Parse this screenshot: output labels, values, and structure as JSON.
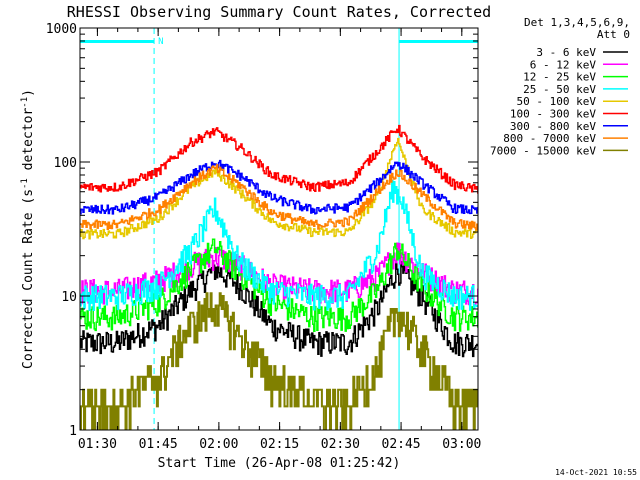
{
  "chart_data": {
    "type": "line",
    "title": "RHESSI Observing Summary Count Rates, Corrected",
    "xlabel": "Start Time (26-Apr-08 01:25:42)",
    "ylabel": "Corrected Count Rate (s",
    "ylabel_sup": "-1",
    "ylabel_tail": " detector",
    "ylabel_end": ")",
    "yscale": "log",
    "ylim": [
      1,
      1000
    ],
    "xlim_minutes": [
      85.7,
      184
    ],
    "x_unit": "minutes after 00:00 UT",
    "x_ticks": [
      {
        "t": 90,
        "label": "01:30"
      },
      {
        "t": 105,
        "label": "01:45"
      },
      {
        "t": 120,
        "label": "02:00"
      },
      {
        "t": 135,
        "label": "02:15"
      },
      {
        "t": 150,
        "label": "02:30"
      },
      {
        "t": 165,
        "label": "02:45"
      },
      {
        "t": 180,
        "label": "03:00"
      }
    ],
    "y_ticks": [
      {
        "v": 1,
        "label": "1"
      },
      {
        "v": 10,
        "label": "10"
      },
      {
        "v": 100,
        "label": "100"
      },
      {
        "v": 1000,
        "label": "1000"
      }
    ],
    "legend": {
      "placement": "right",
      "header": [
        "Det 1,3,4,5,6,9,",
        "Att 0"
      ]
    },
    "series": [
      {
        "name": "3 - 6 keV",
        "color": "#000000",
        "x": [
          85.7,
          95,
          105,
          113,
          119,
          125,
          133,
          143,
          152,
          159,
          164,
          170,
          178,
          184
        ],
        "values": [
          4.5,
          4.5,
          6,
          11,
          16,
          12,
          6,
          4.5,
          4.5,
          8,
          16,
          10,
          4.5,
          4.5
        ]
      },
      {
        "name": "6 - 12 keV",
        "color": "#ff00ff",
        "x": [
          85.7,
          95,
          105,
          113,
          119,
          125,
          133,
          143,
          152,
          159,
          164,
          170,
          178,
          184
        ],
        "values": [
          11,
          11,
          13,
          17,
          20,
          17,
          12,
          11,
          11,
          14,
          22,
          15,
          11,
          11
        ]
      },
      {
        "name": "12 - 25 keV",
        "color": "#00ff00",
        "x": [
          85.7,
          95,
          105,
          113,
          119,
          125,
          133,
          143,
          152,
          159,
          164,
          170,
          178,
          184
        ],
        "values": [
          7,
          7,
          9,
          16,
          23,
          15,
          9,
          7,
          7,
          11,
          23,
          12,
          7,
          7
        ]
      },
      {
        "name": "25 - 50 keV",
        "color": "#00ffff",
        "x": [
          85.7,
          95,
          105,
          113,
          119,
          125,
          133,
          143,
          152,
          159,
          163,
          165,
          170,
          178,
          184
        ],
        "values": [
          10,
          10,
          12,
          22,
          45,
          18,
          11,
          10,
          10,
          22,
          65,
          55,
          15,
          10,
          10
        ]
      },
      {
        "name": "50 - 100 keV",
        "color": "#e6c800",
        "x": [
          85.7,
          95,
          105,
          113,
          119,
          125,
          133,
          143,
          152,
          159,
          164,
          170,
          178,
          184
        ],
        "values": [
          29,
          29,
          38,
          65,
          85,
          60,
          36,
          30,
          30,
          55,
          150,
          45,
          30,
          29
        ]
      },
      {
        "name": "100 - 300 keV",
        "color": "#ff0000",
        "x": [
          85.7,
          95,
          105,
          113,
          119,
          125,
          133,
          143,
          152,
          159,
          164,
          170,
          178,
          184
        ],
        "values": [
          65,
          65,
          85,
          140,
          170,
          130,
          80,
          65,
          70,
          120,
          180,
          110,
          68,
          62
        ]
      },
      {
        "name": "300 - 800 keV",
        "color": "#0000ff",
        "x": [
          85.7,
          95,
          105,
          113,
          119,
          125,
          133,
          143,
          152,
          159,
          164,
          170,
          178,
          184
        ],
        "values": [
          44,
          44,
          55,
          80,
          100,
          80,
          54,
          44,
          46,
          70,
          100,
          70,
          45,
          43
        ]
      },
      {
        "name": "800 - 7000 keV",
        "color": "#ff8000",
        "x": [
          85.7,
          95,
          105,
          113,
          119,
          125,
          133,
          143,
          152,
          159,
          164,
          170,
          178,
          184
        ],
        "values": [
          34,
          34,
          44,
          70,
          90,
          68,
          42,
          34,
          36,
          60,
          85,
          58,
          35,
          33
        ]
      },
      {
        "name": "7000 - 15000 keV",
        "color": "#808000",
        "x": [
          85.7,
          95,
          105,
          113,
          119,
          125,
          133,
          143,
          152,
          159,
          164,
          170,
          178,
          184
        ],
        "values": [
          1.6,
          1.6,
          2.5,
          6,
          9,
          5,
          2.5,
          1.6,
          1.6,
          3,
          8,
          4,
          1.6,
          1.6
        ]
      }
    ],
    "intervals": {
      "color": "#00ffff",
      "night_bars": [
        {
          "start": 85.7,
          "end": 104
        },
        {
          "start": 164.5,
          "end": 184
        }
      ],
      "night_bar_label": "N",
      "dashed_lines": [
        104,
        184
      ],
      "solid_lines": [
        85.7,
        164.5
      ]
    },
    "footer_date": "14-Oct-2021 10:55"
  }
}
